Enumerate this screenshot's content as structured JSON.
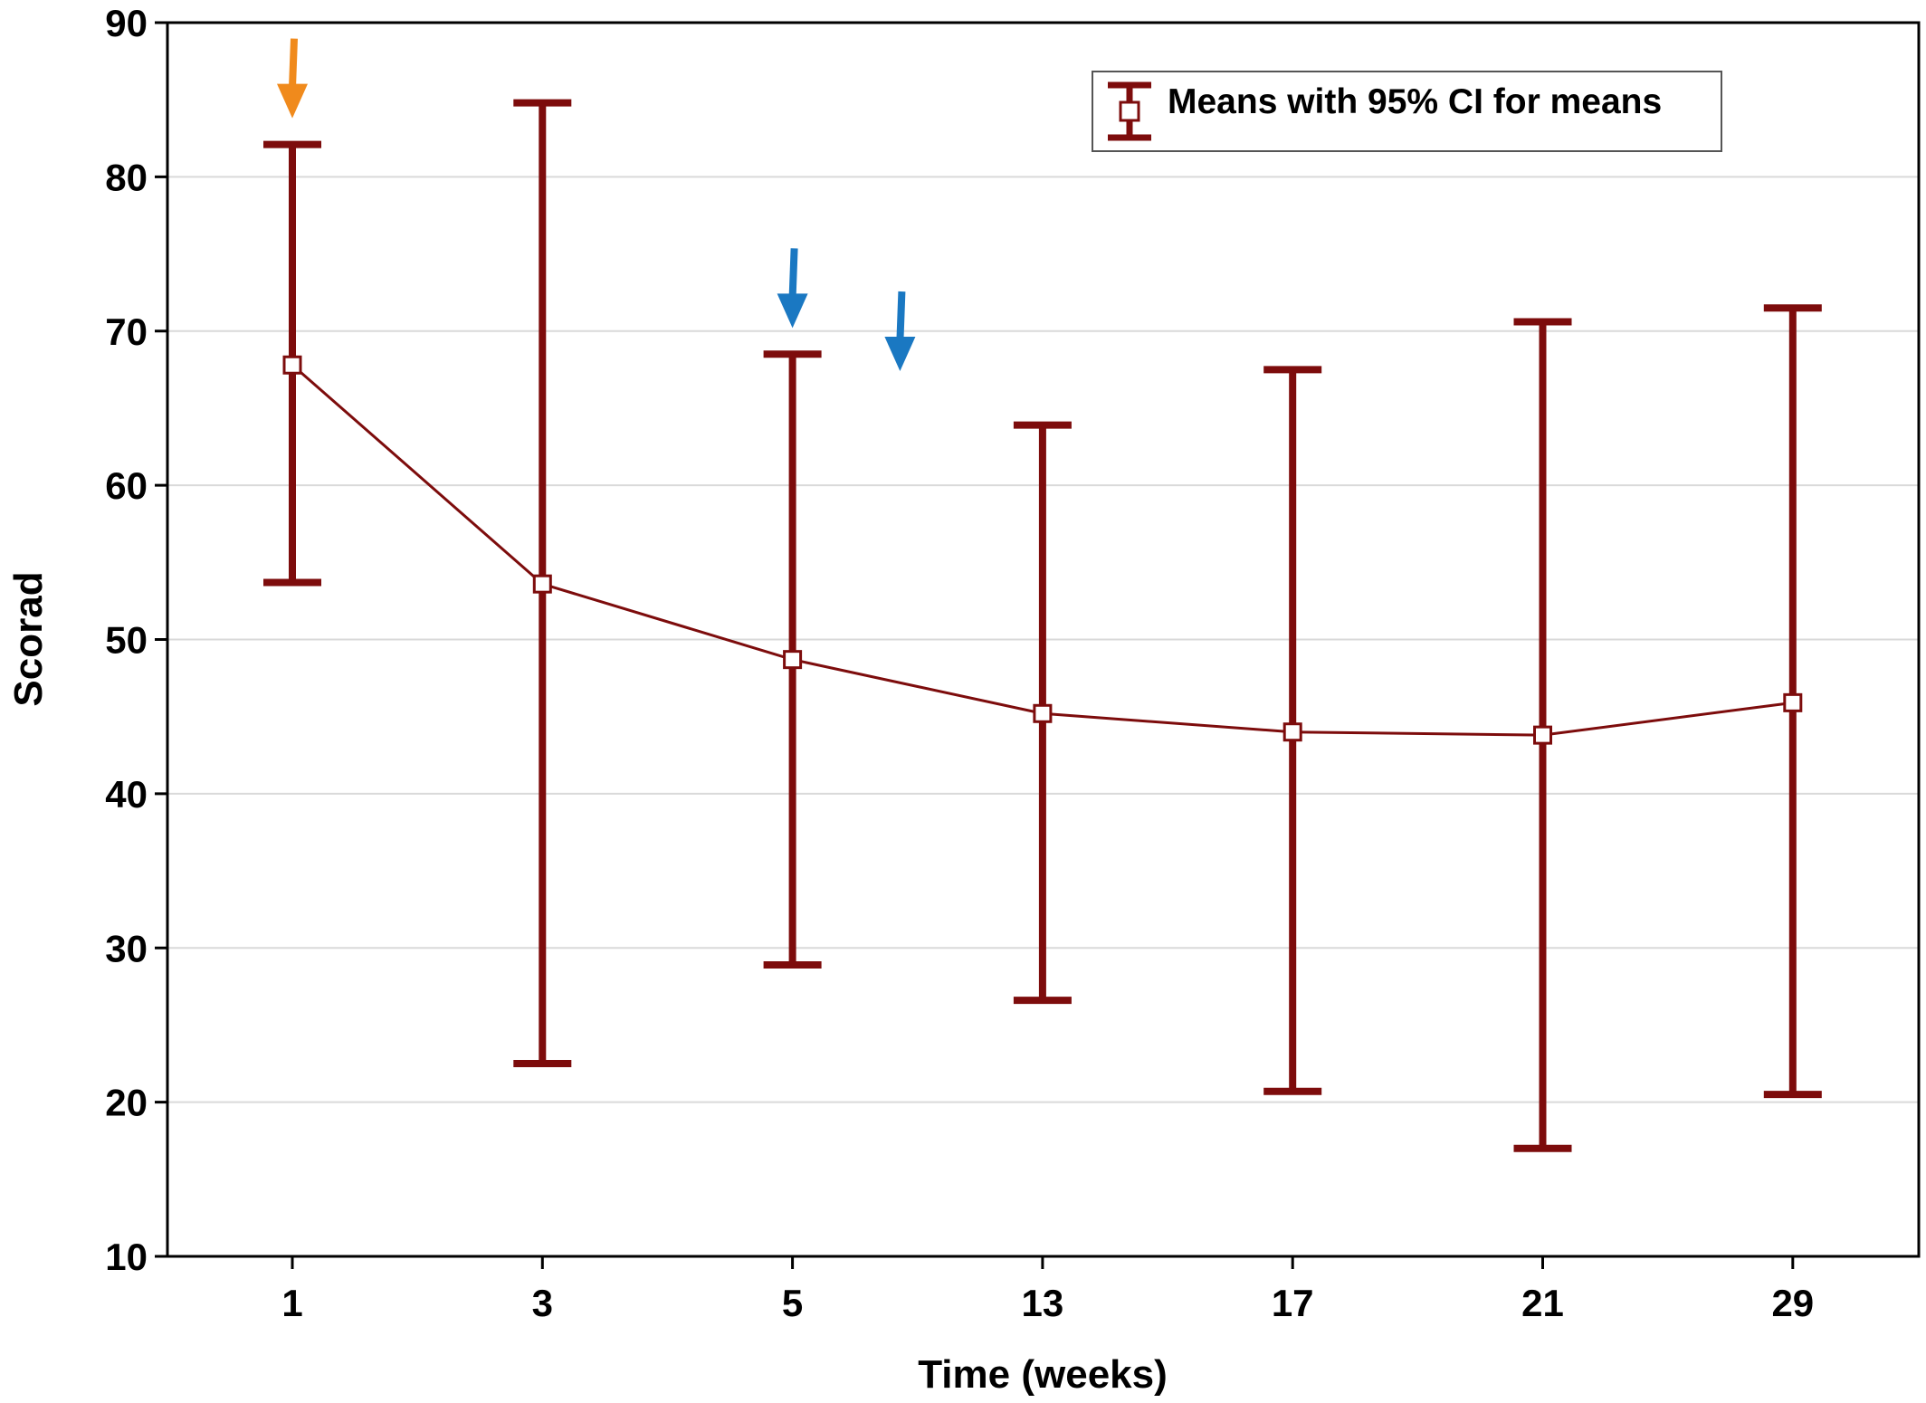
{
  "chart_data": {
    "type": "line",
    "xlabel": "Time (weeks)",
    "ylabel": "Scorad",
    "categories": [
      "1",
      "3",
      "5",
      "13",
      "17",
      "21",
      "29"
    ],
    "ylim": [
      10,
      90
    ],
    "yticks": [
      10,
      20,
      30,
      40,
      50,
      60,
      70,
      80,
      90
    ],
    "grid": "horizontal",
    "legend": {
      "label": "Means with 95% CI for means",
      "position": "top-right"
    },
    "series": [
      {
        "name": "Means with 95% CI for means",
        "means": [
          67.8,
          53.6,
          48.7,
          45.2,
          44.0,
          43.8,
          45.9
        ],
        "ci_lower": [
          53.7,
          22.5,
          28.9,
          26.6,
          20.7,
          17.0,
          20.5
        ],
        "ci_upper": [
          82.1,
          84.8,
          68.5,
          63.9,
          67.5,
          70.6,
          71.5
        ]
      }
    ],
    "markers": [
      {
        "type": "arrow",
        "color": "#f08a1c",
        "x_category_index": 0,
        "y_value": 83.8
      },
      {
        "type": "arrow",
        "color": "#1a78c2",
        "x_category_index": 2,
        "y_value": 70.2
      },
      {
        "type": "arrow",
        "color": "#1a78c2",
        "x_category_index": 2.43,
        "y_value": 67.4
      }
    ],
    "colors": {
      "series": "#7d0c0c",
      "grid": "#d9d9d9",
      "axis": "#000000"
    }
  }
}
